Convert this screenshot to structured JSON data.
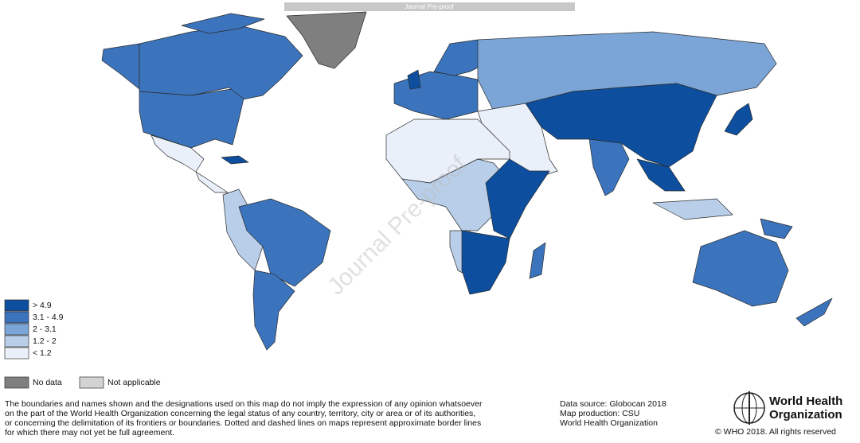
{
  "banner": "Journal Pre-proof",
  "watermark": "Journal Pre-proof",
  "legend": {
    "classes": [
      {
        "label": "> 4.9",
        "color": "#0d4f9e"
      },
      {
        "label": "3.1 - 4.9",
        "color": "#3b74bd"
      },
      {
        "label": "2 - 3.1",
        "color": "#7ba5d6"
      },
      {
        "label": "1.2 - 2",
        "color": "#b9cfe9"
      },
      {
        "label": "< 1.2",
        "color": "#eaf0fa"
      }
    ],
    "other": [
      {
        "label": "No data",
        "color": "#7f7f7f"
      },
      {
        "label": "Not applicable",
        "color": "#d3d3d3"
      }
    ]
  },
  "disclaimer": [
    "The boundaries and names shown and the designations used on this map do not imply the expression of any opinion whatsoever",
    "on the part of the World Health Organization concerning the legal status of any country, territory, city or area or of its authorities,",
    "or concerning the delimitation of its frontiers or boundaries. Dotted and dashed lines on maps represent approximate border lines",
    "for which there may not yet be full agreement."
  ],
  "credits": [
    "Data source: Globocan 2018",
    "Map production: CSU",
    "World Health Organization"
  ],
  "logo": {
    "lines": [
      "World Health",
      "Organization"
    ]
  },
  "copyright": "© WHO 2018. All rights reserved"
}
